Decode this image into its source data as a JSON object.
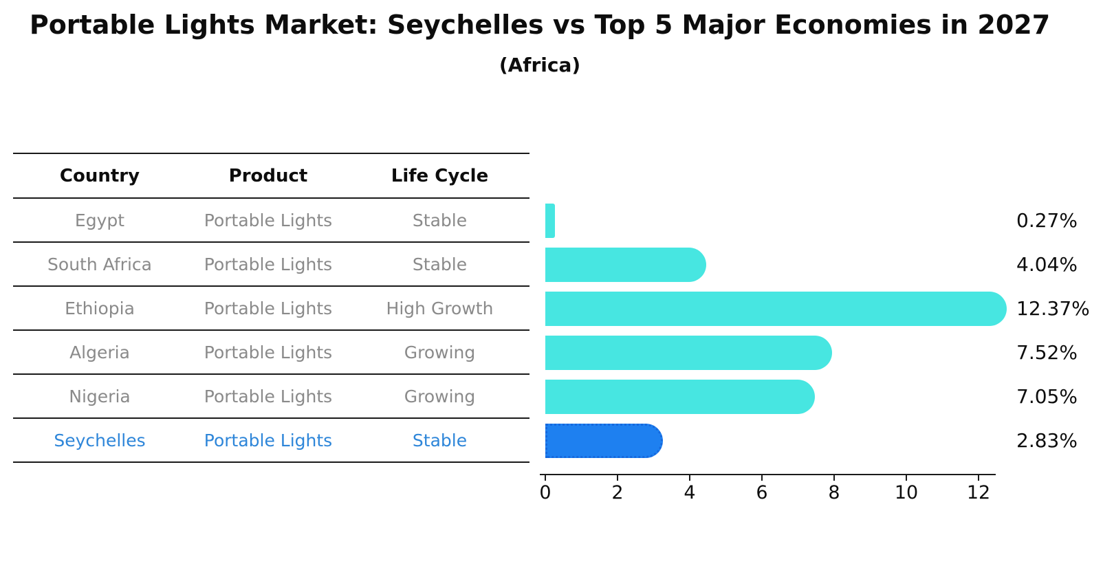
{
  "title": "Portable Lights Market: Seychelles vs Top 5 Major Economies in 2027",
  "subtitle": "(Africa)",
  "table": {
    "headers": [
      "Country",
      "Product",
      "Life Cycle"
    ],
    "rows": [
      {
        "country": "Egypt",
        "product": "Portable Lights",
        "life_cycle": "Stable",
        "highlight": false
      },
      {
        "country": "South Africa",
        "product": "Portable Lights",
        "life_cycle": "Stable",
        "highlight": false
      },
      {
        "country": "Ethiopia",
        "product": "Portable Lights",
        "life_cycle": "High Growth",
        "highlight": false
      },
      {
        "country": "Algeria",
        "product": "Portable Lights",
        "life_cycle": "Growing",
        "highlight": false
      },
      {
        "country": "Nigeria",
        "product": "Portable Lights",
        "life_cycle": "Growing",
        "highlight": true
      }
    ]
  },
  "table_highlight_row": {
    "country": "Seychelles",
    "product": "Portable Lights",
    "life_cycle": "Stable"
  },
  "chart_data": {
    "type": "bar",
    "orientation": "horizontal",
    "title": "Portable Lights Market: Seychelles vs Top 5 Major Economies in 2027",
    "subtitle": "(Africa)",
    "categories": [
      "Egypt",
      "South Africa",
      "Ethiopia",
      "Algeria",
      "Nigeria",
      "Seychelles"
    ],
    "values": [
      0.27,
      4.04,
      12.37,
      7.52,
      7.05,
      2.83
    ],
    "value_labels": [
      "0.27%",
      "4.04%",
      "12.37%",
      "7.52%",
      "7.05%",
      "2.83%"
    ],
    "x_ticks": [
      "0",
      "2",
      "4",
      "6",
      "8",
      "10",
      "12"
    ],
    "xlim": [
      0,
      12.75
    ],
    "grid": false,
    "legend": false,
    "highlight_category": "Seychelles"
  },
  "colors": {
    "bar": "#47E6E1",
    "highlight_bar": "#1E80F0",
    "highlight_border": "#1668DD",
    "highlight_text": "#2E86D9",
    "cell_text": "#8A8A8A"
  }
}
